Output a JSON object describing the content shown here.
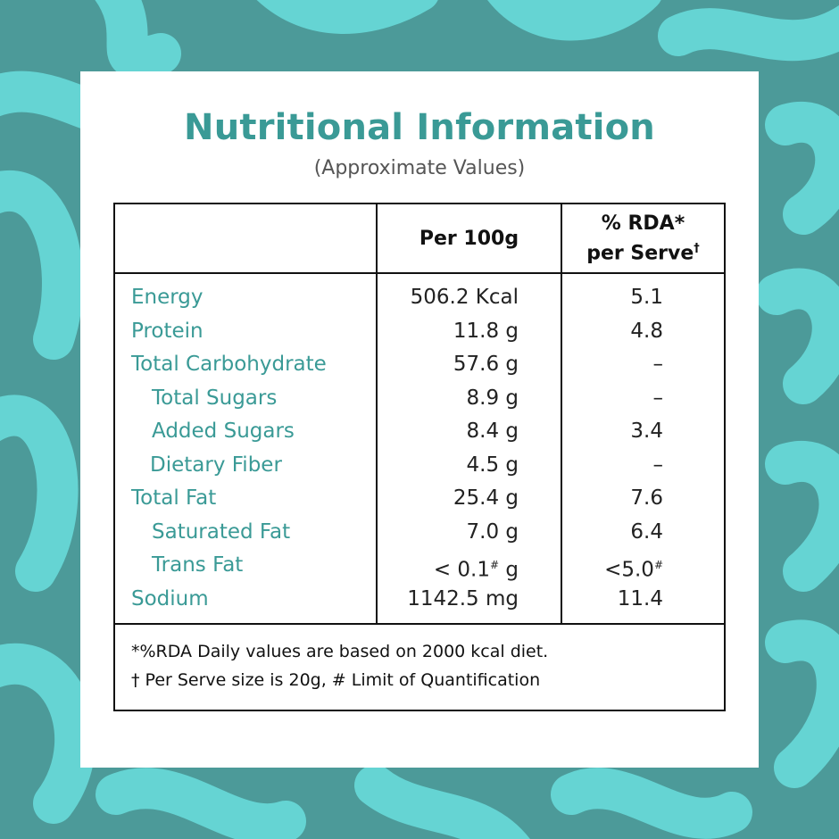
{
  "colors": {
    "teal_text": "#3a9a96",
    "bg_dark": "#4c9a99",
    "bg_light": "#65d4d3"
  },
  "title": "Nutritional Information",
  "subtitle": "(Approximate Values)",
  "table": {
    "col_per100g": "Per 100g",
    "col_rda_line1": "% RDA*",
    "col_rda_line2": "per Serve",
    "col_rda_mark": "†",
    "rows": [
      {
        "label": "Energy",
        "value": "506.2 Kcal",
        "value_sup": "",
        "value_after": "",
        "rda": "5.1",
        "rda_sup": ""
      },
      {
        "label": "Protein",
        "value": "11.8 g",
        "value_sup": "",
        "value_after": "",
        "rda": "4.8",
        "rda_sup": ""
      },
      {
        "label": "Total Carbohydrate",
        "value": "57.6 g",
        "value_sup": "",
        "value_after": "",
        "rda": "–",
        "rda_sup": ""
      },
      {
        "label": "Total Sugars",
        "value": "8.9 g",
        "value_sup": "",
        "value_after": "",
        "rda": "–",
        "rda_sup": ""
      },
      {
        "label": "Added Sugars",
        "value": "8.4 g",
        "value_sup": "",
        "value_after": "",
        "rda": "3.4",
        "rda_sup": ""
      },
      {
        "label": "Dietary Fiber",
        "value": "4.5 g",
        "value_sup": "",
        "value_after": "",
        "rda": "–",
        "rda_sup": ""
      },
      {
        "label": "Total Fat",
        "value": "25.4 g",
        "value_sup": "",
        "value_after": "",
        "rda": "7.6",
        "rda_sup": ""
      },
      {
        "label": "Saturated Fat",
        "value": "7.0 g",
        "value_sup": "",
        "value_after": "",
        "rda": "6.4",
        "rda_sup": ""
      },
      {
        "label": "Trans Fat",
        "value": "< 0.1",
        "value_sup": "#",
        "value_after": " g",
        "rda": "<5.0",
        "rda_sup": "#"
      },
      {
        "label": "Sodium",
        "value": "1142.5 mg",
        "value_sup": "",
        "value_after": "",
        "rda": "11.4",
        "rda_sup": ""
      }
    ]
  },
  "footnotes": [
    "*%RDA Daily values are based on 2000 kcal diet.",
    "† Per Serve size is 20g, # Limit of Quantification"
  ]
}
